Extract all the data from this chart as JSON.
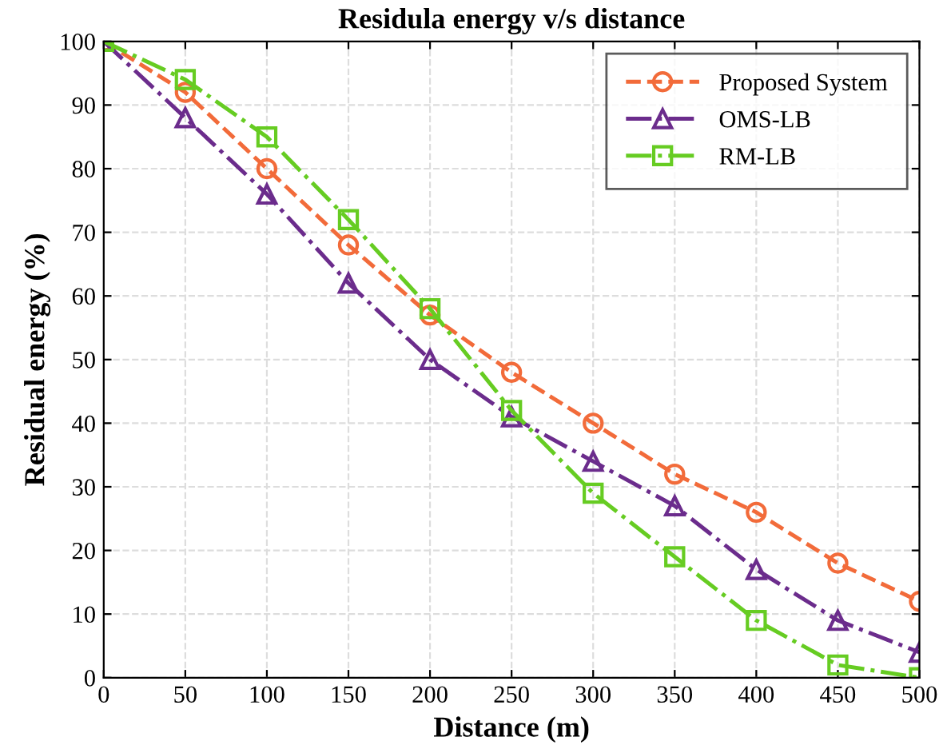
{
  "chart_data": {
    "type": "line",
    "title": "Residula energy v/s distance",
    "xlabel": "Distance (m)",
    "ylabel": "Residual energy (%)",
    "x": [
      0,
      50,
      100,
      150,
      200,
      250,
      300,
      350,
      400,
      450,
      500
    ],
    "series": [
      {
        "name": "Proposed System",
        "color": "#f26b3a",
        "marker": "circle",
        "line_style": "dashed",
        "values": [
          100,
          92,
          80,
          68,
          57,
          48,
          40,
          32,
          26,
          18,
          12
        ]
      },
      {
        "name": "OMS-LB",
        "color": "#6b2c8c",
        "marker": "triangle",
        "line_style": "dashdot",
        "values": [
          100,
          88,
          76,
          62,
          50,
          41,
          34,
          27,
          17,
          9,
          4
        ]
      },
      {
        "name": "RM-LB",
        "color": "#66cc22",
        "marker": "square",
        "line_style": "dashdot",
        "values": [
          100,
          94,
          85,
          72,
          58,
          42,
          29,
          19,
          9,
          2,
          0
        ]
      }
    ],
    "xlim": [
      0,
      500
    ],
    "xticks": [
      0,
      50,
      100,
      150,
      200,
      250,
      300,
      350,
      400,
      450,
      500
    ],
    "ylim": [
      0,
      100
    ],
    "yticks": [
      0,
      10,
      20,
      30,
      40,
      50,
      60,
      70,
      80,
      90,
      100
    ],
    "grid": true,
    "legend": "top right"
  }
}
